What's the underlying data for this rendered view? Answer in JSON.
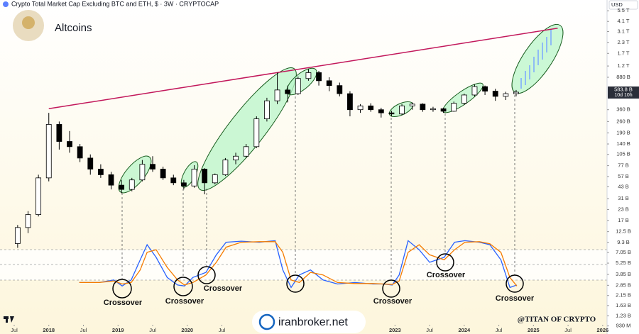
{
  "chart_data": [
    {
      "type": "candlestick",
      "title": "Crypto Total Market Cap Excluding BTC and ETH, $ · 3W · CRYPTOCAP",
      "label": "Altcoins",
      "currency": "USD",
      "log_scale": true,
      "x": [
        2017.55,
        2017.7,
        2017.85,
        2018.0,
        2018.15,
        2018.3,
        2018.45,
        2018.6,
        2018.75,
        2018.9,
        2019.05,
        2019.2,
        2019.35,
        2019.5,
        2019.65,
        2019.8,
        2019.95,
        2020.1,
        2020.25,
        2020.4,
        2020.55,
        2020.7,
        2020.85,
        2021.0,
        2021.15,
        2021.3,
        2021.45,
        2021.6,
        2021.75,
        2021.9,
        2022.05,
        2022.2,
        2022.35,
        2022.5,
        2022.65,
        2022.8,
        2022.95,
        2023.1,
        2023.25,
        2023.4,
        2023.55,
        2023.7,
        2023.85,
        2024.0,
        2024.15,
        2024.3,
        2024.45,
        2024.6,
        2024.75
      ],
      "open": [
        9000000000.0,
        14000000000.0,
        20000000000.0,
        55000000000.0,
        240000000000.0,
        150000000000.0,
        130000000000.0,
        95000000000.0,
        70000000000.0,
        60000000000.0,
        45000000000.0,
        40000000000.0,
        52000000000.0,
        80000000000.0,
        70000000000.0,
        55000000000.0,
        48000000000.0,
        44000000000.0,
        70000000000.0,
        48000000000.0,
        60000000000.0,
        90000000000.0,
        100000000000.0,
        130000000000.0,
        280000000000.0,
        460000000000.0,
        620000000000.0,
        560000000000.0,
        850000000000.0,
        1000000000000.0,
        800000000000.0,
        700000000000.0,
        560000000000.0,
        360000000000.0,
        400000000000.0,
        360000000000.0,
        330000000000.0,
        320000000000.0,
        400000000000.0,
        420000000000.0,
        360000000000.0,
        370000000000.0,
        345000000000.0,
        430000000000.0,
        540000000000.0,
        680000000000.0,
        600000000000.0,
        520000000000.0,
        560000000000.0
      ],
      "high": [
        15000000000.0,
        22000000000.0,
        60000000000.0,
        330000000000.0,
        260000000000.0,
        200000000000.0,
        140000000000.0,
        105000000000.0,
        80000000000.0,
        65000000000.0,
        52000000000.0,
        55000000000.0,
        90000000000.0,
        100000000000.0,
        75000000000.0,
        60000000000.0,
        52000000000.0,
        78000000000.0,
        72000000000.0,
        62000000000.0,
        95000000000.0,
        110000000000.0,
        140000000000.0,
        300000000000.0,
        500000000000.0,
        1000000000000.0,
        700000000000.0,
        900000000000.0,
        1100000000000.0,
        1050000000000.0,
        880000000000.0,
        760000000000.0,
        600000000000.0,
        420000000000.0,
        430000000000.0,
        380000000000.0,
        350000000000.0,
        420000000000.0,
        440000000000.0,
        430000000000.0,
        390000000000.0,
        380000000000.0,
        450000000000.0,
        560000000000.0,
        720000000000.0,
        700000000000.0,
        640000000000.0,
        590000000000.0,
        620000000000.0
      ],
      "low": [
        8000000000.0,
        12000000000.0,
        19000000000.0,
        50000000000.0,
        120000000000.0,
        110000000000.0,
        85000000000.0,
        60000000000.0,
        55000000000.0,
        40000000000.0,
        36000000000.0,
        38000000000.0,
        50000000000.0,
        65000000000.0,
        52000000000.0,
        45000000000.0,
        40000000000.0,
        42000000000.0,
        35000000000.0,
        46000000000.0,
        58000000000.0,
        80000000000.0,
        95000000000.0,
        125000000000.0,
        260000000000.0,
        420000000000.0,
        440000000000.0,
        540000000000.0,
        800000000000.0,
        700000000000.0,
        600000000000.0,
        520000000000.0,
        300000000000.0,
        330000000000.0,
        340000000000.0,
        290000000000.0,
        300000000000.0,
        310000000000.0,
        360000000000.0,
        340000000000.0,
        340000000000.0,
        330000000000.0,
        340000000000.0,
        410000000000.0,
        520000000000.0,
        540000000000.0,
        460000000000.0,
        470000000000.0,
        520000000000.0
      ],
      "close": [
        14000000000.0,
        20000000000.0,
        55000000000.0,
        240000000000.0,
        150000000000.0,
        130000000000.0,
        95000000000.0,
        70000000000.0,
        60000000000.0,
        45000000000.0,
        40000000000.0,
        52000000000.0,
        80000000000.0,
        70000000000.0,
        55000000000.0,
        48000000000.0,
        44000000000.0,
        70000000000.0,
        48000000000.0,
        60000000000.0,
        90000000000.0,
        100000000000.0,
        130000000000.0,
        280000000000.0,
        460000000000.0,
        620000000000.0,
        560000000000.0,
        850000000000.0,
        1000000000000.0,
        800000000000.0,
        700000000000.0,
        560000000000.0,
        360000000000.0,
        400000000000.0,
        360000000000.0,
        330000000000.0,
        320000000000.0,
        400000000000.0,
        420000000000.0,
        360000000000.0,
        370000000000.0,
        345000000000.0,
        430000000000.0,
        540000000000.0,
        680000000000.0,
        600000000000.0,
        520000000000.0,
        560000000000.0,
        583800000000.0
      ],
      "up_color": "#ffffff",
      "down_color": "#000000",
      "xlim": [
        2017.295,
        2026.063
      ],
      "xticks": [
        {
          "value": 2017.5,
          "label": "Jul"
        },
        2018,
        {
          "value": 2018.5,
          "label": "Jul"
        },
        2019,
        {
          "value": 2019.5,
          "label": "Jul"
        },
        2020,
        {
          "value": 2020.5,
          "label": "Jul"
        },
        2023,
        {
          "value": 2023.5,
          "label": "Jul"
        },
        2024,
        {
          "value": 2024.5,
          "label": "Jul"
        },
        2025,
        {
          "value": 2025.5,
          "label": "Jul"
        },
        2026
      ],
      "ylim": [
        960000000,
        7400000000000
      ],
      "yticks": [
        {
          "value": 5500000000000.0,
          "label": "5.5 T"
        },
        {
          "value": 4100000000000.0,
          "label": "4.1 T"
        },
        {
          "value": 3100000000000.0,
          "label": "3.1 T"
        },
        {
          "value": 2300000000000.0,
          "label": "2.3 T"
        },
        {
          "value": 1700000000000.0,
          "label": "1.7 T"
        },
        {
          "value": 1200000000000.0,
          "label": "1.2 T"
        },
        {
          "value": 880000000000.0,
          "label": "880 B"
        },
        {
          "value": 360000000000.0,
          "label": "360 B"
        },
        {
          "value": 260000000000.0,
          "label": "260 B"
        },
        {
          "value": 190000000000.0,
          "label": "190 B"
        },
        {
          "value": 140000000000.0,
          "label": "140 B"
        },
        {
          "value": 105000000000.0,
          "label": "105 B"
        },
        {
          "value": 77000000000.0,
          "label": "77 B"
        },
        {
          "value": 57000000000.0,
          "label": "57 B"
        },
        {
          "value": 43000000000.0,
          "label": "43 B"
        },
        {
          "value": 31000000000.0,
          "label": "31 B"
        },
        {
          "value": 23000000000.0,
          "label": "23 B"
        },
        {
          "value": 17000000000.0,
          "label": "17 B"
        },
        {
          "value": 12500000000.0,
          "label": "12.5 B"
        },
        {
          "value": 9300000000.0,
          "label": "9.3 B"
        },
        {
          "value": 7050000000.0,
          "label": "7.05 B"
        },
        {
          "value": 5250000000.0,
          "label": "5.25 B"
        },
        {
          "value": 3850000000.0,
          "label": "3.85 B"
        },
        {
          "value": 2850000000.0,
          "label": "2.85 B"
        },
        {
          "value": 2150000000.0,
          "label": "2.15 B"
        },
        {
          "value": 1630000000.0,
          "label": "1.63 B"
        },
        {
          "value": 1230000000.0,
          "label": "1.23 B"
        },
        {
          "value": 930000000.0,
          "label": "930 M"
        }
      ],
      "last_price": {
        "value": 583800000000.0,
        "label": "583.8 B"
      },
      "countdown": "10d 10h",
      "trendline": {
        "x": [
          2018.0,
          2025.35
        ],
        "values": [
          370000000000.0,
          3400000000000.0
        ],
        "color": "#c2185b"
      },
      "annotations": [
        "Crossover",
        "Crossover",
        "Crossover",
        "Crossover",
        "Crossover",
        "Crossover"
      ],
      "watermarks": [
        "@TITAN OF CRYPTO",
        "iranbroker.net"
      ]
    },
    {
      "type": "line",
      "x": [
        2018.44,
        2018.73,
        2018.94,
        2019.06,
        2019.19,
        2019.32,
        2019.42,
        2019.55,
        2019.71,
        2019.86,
        2019.96,
        2020.08,
        2020.27,
        2020.42,
        2020.56,
        2020.78,
        2021.04,
        2021.27,
        2021.38,
        2021.5,
        2021.62,
        2021.78,
        2021.96,
        2022.17,
        2022.42,
        2022.68,
        2022.83,
        2022.96,
        2023.06,
        2023.19,
        2023.35,
        2023.5,
        2023.71,
        2023.86,
        2024.01,
        2024.22,
        2024.37,
        2024.53,
        2024.66,
        2024.76
      ],
      "ylim": [
        0,
        100
      ],
      "series": [
        {
          "color": "#2962ff",
          "values": [
            15,
            15,
            20,
            8,
            20,
            60,
            90,
            65,
            25,
            10,
            8,
            25,
            35,
            70,
            95,
            97,
            95,
            98,
            40,
            5,
            30,
            40,
            20,
            12,
            15,
            12,
            12,
            10,
            30,
            98,
            80,
            55,
            65,
            95,
            98,
            95,
            90,
            60,
            5,
            10
          ]
        },
        {
          "color": "#f57c00",
          "values": [
            15,
            15,
            18,
            12,
            15,
            40,
            75,
            80,
            45,
            20,
            10,
            15,
            30,
            55,
            85,
            95,
            96,
            96,
            75,
            20,
            15,
            35,
            30,
            15,
            13,
            13,
            12,
            11,
            18,
            75,
            90,
            70,
            60,
            80,
            95,
            96,
            92,
            75,
            25,
            8
          ]
        }
      ]
    }
  ]
}
